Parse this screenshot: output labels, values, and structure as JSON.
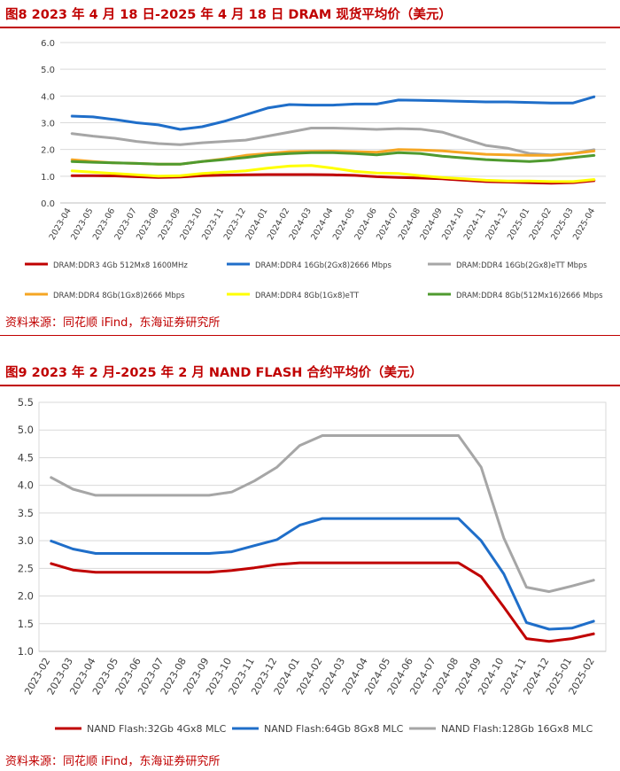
{
  "charts": [
    {
      "title": "图8  2023 年 4 月 18 日-2025 年 4 月 18 日 DRAM 现货平均价（美元）",
      "source": "资料来源：同花顺 iFind，东海证券研究所"
    },
    {
      "title": "图9  2023 年 2 月-2025 年 2 月 NAND FLASH 合约平均价（美元）",
      "source": "资料来源：同花顺 iFind，东海证券研究所"
    }
  ],
  "chart_data": [
    {
      "type": "line",
      "title": "2023 年 4 月 18 日-2025 年 4 月 18 日 DRAM 现货平均价（美元）",
      "x": [
        "2023-04",
        "2023-05",
        "2023-06",
        "2023-07",
        "2023-08",
        "2023-09",
        "2023-10",
        "2023-11",
        "2023-12",
        "2024-01",
        "2024-02",
        "2024-03",
        "2024-04",
        "2024-05",
        "2024-06",
        "2024-07",
        "2024-08",
        "2024-09",
        "2024-10",
        "2024-11",
        "2024-12",
        "2025-01",
        "2025-02",
        "2025-03",
        "2025-04"
      ],
      "ylim": [
        0,
        6
      ],
      "yticks": [
        "0.0",
        "1.0",
        "2.0",
        "3.0",
        "4.0",
        "5.0",
        "6.0"
      ],
      "legend": "bottom",
      "series": [
        {
          "name": "DRAM:DDR3 4Gb 512Mx8 1600MHz",
          "color": "#c00000",
          "values": [
            1.02,
            1.02,
            1.01,
            0.98,
            0.95,
            0.97,
            1.02,
            1.04,
            1.05,
            1.06,
            1.06,
            1.06,
            1.05,
            1.03,
            0.98,
            0.95,
            0.93,
            0.9,
            0.85,
            0.8,
            0.78,
            0.76,
            0.74,
            0.76,
            0.84
          ]
        },
        {
          "name": "DRAM:DDR4 16Gb(2Gx8)2666 Mbps",
          "color": "#1f6ec9",
          "values": [
            3.25,
            3.22,
            3.12,
            3.0,
            2.92,
            2.75,
            2.85,
            3.05,
            3.3,
            3.55,
            3.68,
            3.66,
            3.66,
            3.7,
            3.7,
            3.85,
            3.84,
            3.82,
            3.8,
            3.78,
            3.78,
            3.76,
            3.74,
            3.74,
            3.98
          ]
        },
        {
          "name": "DRAM:DDR4 16Gb(2Gx8)eTT Mbps",
          "color": "#a6a6a6",
          "values": [
            2.6,
            2.5,
            2.42,
            2.3,
            2.22,
            2.18,
            2.25,
            2.3,
            2.35,
            2.5,
            2.65,
            2.8,
            2.8,
            2.78,
            2.75,
            2.78,
            2.76,
            2.65,
            2.4,
            2.15,
            2.05,
            1.85,
            1.8,
            1.85,
            2.0
          ]
        },
        {
          "name": "DRAM:DDR4 8Gb(1Gx8)2666 Mbps",
          "color": "#f5a623",
          "values": [
            1.62,
            1.55,
            1.5,
            1.48,
            1.45,
            1.45,
            1.55,
            1.65,
            1.78,
            1.85,
            1.92,
            1.93,
            1.94,
            1.92,
            1.9,
            2.0,
            1.98,
            1.95,
            1.88,
            1.82,
            1.8,
            1.78,
            1.78,
            1.85,
            1.95
          ]
        },
        {
          "name": "DRAM:DDR4 8Gb(1Gx8)eTT",
          "color": "#ffff00",
          "values": [
            1.2,
            1.15,
            1.1,
            1.05,
            1.0,
            1.02,
            1.1,
            1.15,
            1.2,
            1.3,
            1.38,
            1.4,
            1.3,
            1.18,
            1.12,
            1.1,
            1.02,
            0.95,
            0.9,
            0.85,
            0.82,
            0.82,
            0.8,
            0.8,
            0.88
          ]
        },
        {
          "name": "DRAM:DDR4 8Gb(512Mx16)2666 Mbps",
          "color": "#4f9a2f",
          "values": [
            1.55,
            1.52,
            1.5,
            1.48,
            1.45,
            1.45,
            1.55,
            1.62,
            1.7,
            1.8,
            1.85,
            1.88,
            1.88,
            1.85,
            1.8,
            1.88,
            1.85,
            1.75,
            1.68,
            1.62,
            1.58,
            1.55,
            1.6,
            1.7,
            1.78
          ]
        }
      ]
    },
    {
      "type": "line",
      "title": "2023 年 2 月-2025 年 2 月 NAND FLASH 合约平均价（美元）",
      "x": [
        "2023-02",
        "2023-03",
        "2023-04",
        "2023-05",
        "2023-06",
        "2023-07",
        "2023-08",
        "2023-09",
        "2023-10",
        "2023-11",
        "2023-12",
        "2024-01",
        "2024-02",
        "2024-03",
        "2024-04",
        "2024-05",
        "2024-06",
        "2024-07",
        "2024-08",
        "2024-09",
        "2024-10",
        "2024-11",
        "2024-12",
        "2025-01",
        "2025-02"
      ],
      "ylim": [
        1.0,
        5.5
      ],
      "yticks": [
        "1.0",
        "1.5",
        "2.0",
        "2.5",
        "3.0",
        "3.5",
        "4.0",
        "4.5",
        "5.0",
        "5.5"
      ],
      "legend": "bottom",
      "series": [
        {
          "name": "NAND Flash:32Gb 4Gx8 MLC",
          "color": "#c00000",
          "values": [
            2.59,
            2.47,
            2.43,
            2.43,
            2.43,
            2.43,
            2.43,
            2.43,
            2.46,
            2.51,
            2.57,
            2.6,
            2.6,
            2.6,
            2.6,
            2.6,
            2.6,
            2.6,
            2.6,
            2.35,
            1.8,
            1.23,
            1.18,
            1.23,
            1.32
          ]
        },
        {
          "name": "NAND Flash:64Gb 8Gx8 MLC",
          "color": "#1f6ec9",
          "values": [
            3.0,
            2.85,
            2.77,
            2.77,
            2.77,
            2.77,
            2.77,
            2.77,
            2.8,
            2.91,
            3.02,
            3.28,
            3.4,
            3.4,
            3.4,
            3.4,
            3.4,
            3.4,
            3.4,
            3.0,
            2.4,
            1.52,
            1.4,
            1.42,
            1.55
          ]
        },
        {
          "name": "NAND Flash:128Gb 16Gx8 MLC",
          "color": "#a6a6a6",
          "values": [
            4.15,
            3.93,
            3.82,
            3.82,
            3.82,
            3.82,
            3.82,
            3.82,
            3.88,
            4.08,
            4.33,
            4.72,
            4.9,
            4.9,
            4.9,
            4.9,
            4.9,
            4.9,
            4.9,
            4.33,
            3.05,
            2.16,
            2.08,
            2.18,
            2.29
          ]
        }
      ]
    }
  ]
}
